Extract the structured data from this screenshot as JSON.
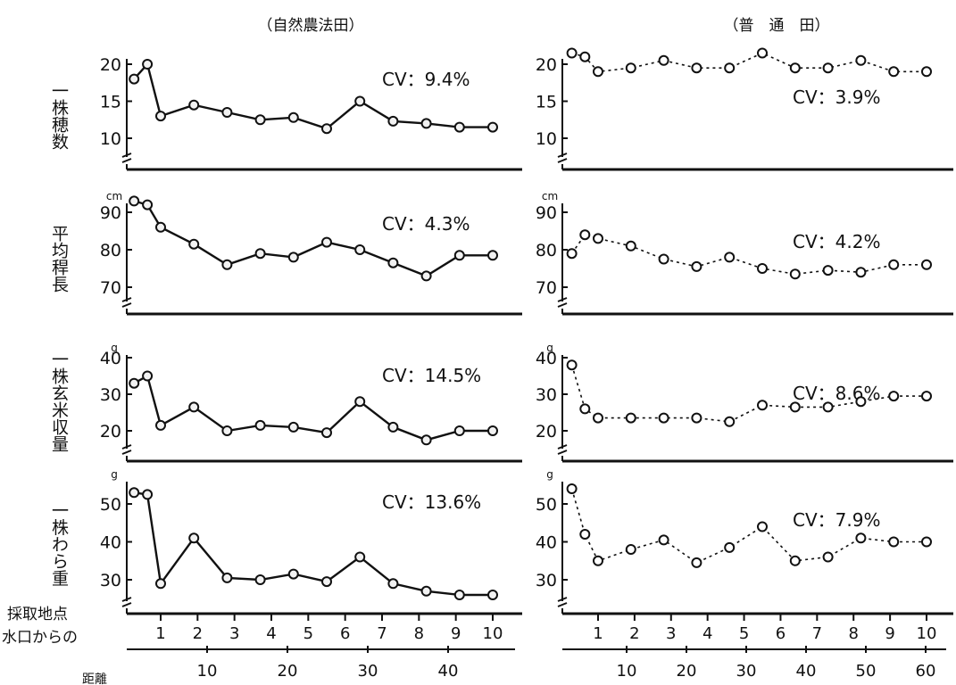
{
  "column_titles": [
    "（自然農法田）",
    "（普　通　田）"
  ],
  "x_axis": {
    "title_lines": [
      "採取地点",
      "水口からの",
      "距離"
    ],
    "point_labels": [
      "1",
      "2",
      "3",
      "4",
      "5",
      "6",
      "7",
      "8",
      "9",
      "10"
    ],
    "distance_ticks_natural": [
      "10",
      "20",
      "30",
      "40"
    ],
    "distance_ticks_conventional": [
      "10",
      "20",
      "30",
      "40",
      "50",
      "60"
    ]
  },
  "chart_data": [
    {
      "type": "line",
      "panel": "natural-field-panicles",
      "row_label": "一株穂数",
      "unit_label": "",
      "cv_label": "CV：9.4%",
      "y_ticks": [
        "10",
        "15",
        "20"
      ],
      "ylim": [
        6,
        21
      ],
      "series": [
        {
          "x": [
            -0.8,
            -0.4,
            0,
            1,
            2,
            3,
            4,
            5,
            6,
            7,
            8,
            9,
            10
          ],
          "values": [
            18,
            20,
            13,
            14.5,
            13.5,
            12.5,
            12.8,
            11.3,
            15,
            12.3,
            12,
            11.5,
            11.5
          ]
        }
      ]
    },
    {
      "type": "line",
      "panel": "natural-field-culm-length",
      "row_label": "平均稈長",
      "unit_label": "cm",
      "cv_label": "CV：4.3%",
      "y_ticks": [
        "70",
        "80",
        "90"
      ],
      "ylim": [
        63,
        95
      ],
      "series": [
        {
          "x": [
            -0.8,
            -0.4,
            0,
            1,
            2,
            3,
            4,
            5,
            6,
            7,
            8,
            9,
            10
          ],
          "values": [
            93,
            92,
            86,
            81.5,
            76,
            79,
            78,
            82,
            80,
            76.5,
            73,
            78.5,
            78.5
          ]
        }
      ]
    },
    {
      "type": "line",
      "panel": "natural-field-brown-rice",
      "row_label": "一株玄米収量",
      "unit_label": "g",
      "cv_label": "CV：14.5%",
      "y_ticks": [
        "20",
        "30",
        "40"
      ],
      "ylim": [
        12,
        43
      ],
      "series": [
        {
          "x": [
            -0.8,
            -0.4,
            0,
            1,
            2,
            3,
            4,
            5,
            6,
            7,
            8,
            9,
            10
          ],
          "values": [
            33,
            35,
            21.5,
            26.5,
            20,
            21.5,
            21,
            19.5,
            28,
            21,
            17.5,
            20,
            20
          ]
        }
      ]
    },
    {
      "type": "line",
      "panel": "natural-field-straw-weight",
      "row_label": "一株わら重",
      "unit_label": "g",
      "cv_label": "CV：13.6%",
      "y_ticks": [
        "30",
        "40",
        "50"
      ],
      "ylim": [
        22,
        56
      ],
      "series": [
        {
          "x": [
            -0.8,
            -0.4,
            0,
            1,
            2,
            3,
            4,
            5,
            6,
            7,
            8,
            9,
            10
          ],
          "values": [
            53,
            52.5,
            29,
            41,
            30.5,
            30,
            31.5,
            29.5,
            36,
            29,
            27,
            26,
            26
          ]
        }
      ]
    },
    {
      "type": "line",
      "panel": "conventional-field-panicles",
      "row_label": "一株穂数",
      "unit_label": "",
      "cv_label": "CV：3.9%",
      "y_ticks": [
        "10",
        "15",
        "20"
      ],
      "ylim": [
        6,
        22
      ],
      "series": [
        {
          "x": [
            -0.8,
            -0.4,
            0,
            1,
            2,
            3,
            4,
            5,
            6,
            7,
            8,
            9,
            10
          ],
          "values": [
            21.5,
            21,
            19,
            19.5,
            20.5,
            19.5,
            19.5,
            21.5,
            19.5,
            19.5,
            20.5,
            19,
            19
          ]
        }
      ]
    },
    {
      "type": "line",
      "panel": "conventional-field-culm-length",
      "row_label": "平均稈長",
      "unit_label": "cm",
      "cv_label": "CV：4.2%",
      "y_ticks": [
        "70",
        "80",
        "90"
      ],
      "ylim": [
        63,
        95
      ],
      "series": [
        {
          "x": [
            -0.8,
            -0.4,
            0,
            1,
            2,
            3,
            4,
            5,
            6,
            7,
            8,
            9,
            10
          ],
          "values": [
            79,
            84,
            83,
            81,
            77.5,
            75.5,
            78,
            75,
            73.5,
            74.5,
            74,
            76,
            76
          ]
        }
      ]
    },
    {
      "type": "line",
      "panel": "conventional-field-brown-rice",
      "row_label": "一株玄米収量",
      "unit_label": "g",
      "cv_label": "CV：8.6%",
      "y_ticks": [
        "20",
        "30",
        "40"
      ],
      "ylim": [
        12,
        43
      ],
      "series": [
        {
          "x": [
            -0.8,
            -0.4,
            0,
            1,
            2,
            3,
            4,
            5,
            6,
            7,
            8,
            9,
            10
          ],
          "values": [
            38,
            26,
            23.5,
            23.5,
            23.5,
            23.5,
            22.5,
            27,
            26.5,
            26.5,
            28,
            29.5,
            29.5
          ]
        }
      ]
    },
    {
      "type": "line",
      "panel": "conventional-field-straw-weight",
      "row_label": "一株わら重",
      "unit_label": "g",
      "cv_label": "CV：7.9%",
      "y_ticks": [
        "30",
        "40",
        "50"
      ],
      "ylim": [
        22,
        56
      ],
      "series": [
        {
          "x": [
            -0.8,
            -0.4,
            0,
            1,
            2,
            3,
            4,
            5,
            6,
            7,
            8,
            9,
            10
          ],
          "values": [
            54,
            42,
            35,
            38,
            40.5,
            34.5,
            38.5,
            44,
            35,
            36,
            41,
            40,
            40
          ]
        }
      ]
    }
  ]
}
